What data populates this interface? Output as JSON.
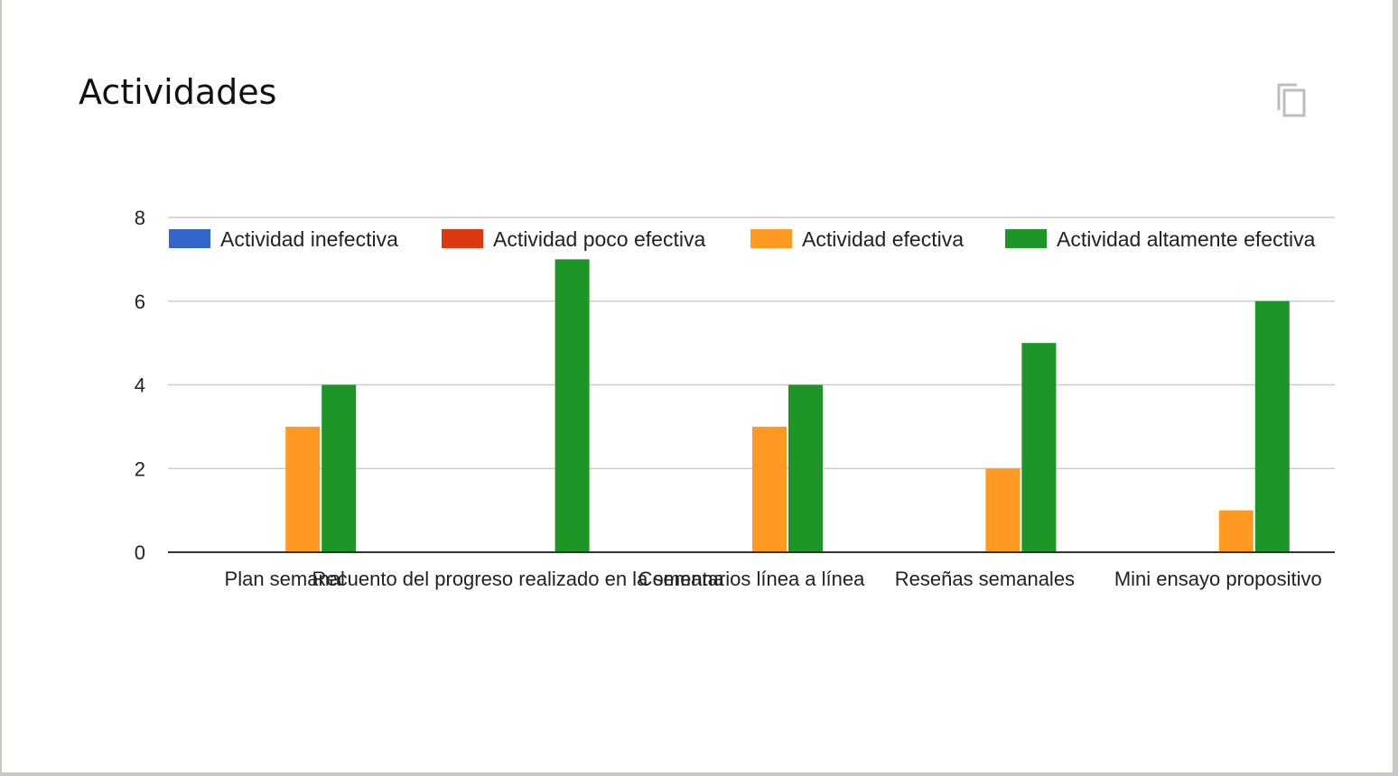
{
  "card": {
    "title": "Actividades",
    "copy_icon": "copy-icon"
  },
  "chart_data": {
    "type": "bar",
    "title": "Actividades",
    "xlabel": "",
    "ylabel": "",
    "ylim": [
      0,
      8
    ],
    "yticks": [
      0,
      2,
      4,
      6,
      8
    ],
    "grid": true,
    "legend_position": "top",
    "categories": [
      "Plan semanal",
      "Recuento del progreso realizado en la semana",
      "Comentarios línea a línea",
      "Reseñas semanales",
      "Mini ensayo propositivo"
    ],
    "series": [
      {
        "name": "Actividad inefectiva",
        "color": "#3366cc",
        "values": [
          0,
          0,
          0,
          0,
          0
        ]
      },
      {
        "name": "Actividad poco efectiva",
        "color": "#dc3912",
        "values": [
          0,
          0,
          0,
          0,
          0
        ]
      },
      {
        "name": "Actividad efectiva",
        "color": "#ff9922",
        "values": [
          3,
          0,
          3,
          2,
          1
        ]
      },
      {
        "name": "Actividad altamente efectiva",
        "color": "#1e9627",
        "values": [
          4,
          7,
          4,
          5,
          6
        ]
      }
    ]
  }
}
